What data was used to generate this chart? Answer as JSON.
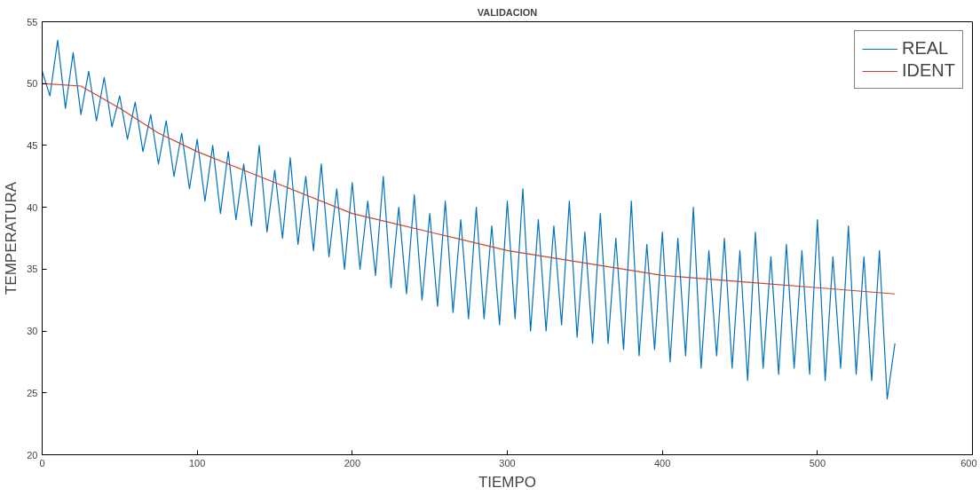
{
  "chart_data": {
    "type": "line",
    "title": "VALIDACION",
    "xlabel": "TIEMPO",
    "ylabel": "TEMPERATURA",
    "xlim": [
      0,
      600
    ],
    "ylim": [
      20,
      55
    ],
    "xticks": [
      0,
      100,
      200,
      300,
      400,
      500,
      600
    ],
    "yticks": [
      20,
      25,
      30,
      35,
      40,
      45,
      50,
      55
    ],
    "grid": false,
    "legend": "top right",
    "marker": "none",
    "line_style": "solid",
    "series": [
      {
        "name": "REAL",
        "color": "#0072bd",
        "x": [
          0,
          5,
          10,
          15,
          20,
          25,
          30,
          35,
          40,
          45,
          50,
          55,
          60,
          65,
          70,
          75,
          80,
          85,
          90,
          95,
          100,
          105,
          110,
          115,
          120,
          125,
          130,
          135,
          140,
          145,
          150,
          155,
          160,
          165,
          170,
          175,
          180,
          185,
          190,
          195,
          200,
          205,
          210,
          215,
          220,
          225,
          230,
          235,
          240,
          245,
          250,
          255,
          260,
          265,
          270,
          275,
          280,
          285,
          290,
          295,
          300,
          305,
          310,
          315,
          320,
          325,
          330,
          335,
          340,
          345,
          350,
          355,
          360,
          365,
          370,
          375,
          380,
          385,
          390,
          395,
          400,
          405,
          410,
          415,
          420,
          425,
          430,
          435,
          440,
          445,
          450,
          455,
          460,
          465,
          470,
          475,
          480,
          485,
          490,
          495,
          500,
          505,
          510,
          515,
          520,
          525,
          530,
          535,
          540,
          545,
          550
        ],
        "values": [
          51,
          49,
          53.5,
          48,
          52.5,
          47.5,
          51,
          47,
          50.5,
          46.5,
          49,
          45.5,
          48.5,
          44.5,
          47.5,
          43.5,
          47,
          42.5,
          46,
          41.5,
          45.5,
          40.5,
          45,
          39.5,
          44.5,
          39,
          43.5,
          38.5,
          45,
          38,
          43,
          37.5,
          44,
          37,
          42.5,
          36.5,
          43.5,
          36,
          41.5,
          35,
          42,
          35,
          40.5,
          34.5,
          42.5,
          33.5,
          40,
          33,
          41,
          32.5,
          39.5,
          32,
          40.5,
          31.5,
          39,
          31,
          40,
          31,
          38.5,
          30.5,
          40.5,
          31,
          41.5,
          30,
          39,
          30,
          38.5,
          30.5,
          40.5,
          29.5,
          38,
          29,
          39.5,
          29,
          37.5,
          28.5,
          40.5,
          28,
          37,
          28.5,
          38,
          27.5,
          37.5,
          28,
          40,
          27,
          36.5,
          28,
          37.5,
          27,
          36.5,
          26,
          38,
          27,
          36,
          26.5,
          37,
          27,
          36.5,
          26.5,
          39,
          26,
          36,
          27,
          38.5,
          26.5,
          36,
          26,
          36.5,
          24.5,
          29
        ]
      },
      {
        "name": "IDENT",
        "color": "#c8452d",
        "x": [
          0,
          25,
          50,
          75,
          100,
          150,
          200,
          250,
          300,
          350,
          400,
          450,
          500,
          550
        ],
        "values": [
          50,
          49.8,
          48,
          46,
          44.5,
          42,
          39.5,
          38,
          36.5,
          35.5,
          34.5,
          34,
          33.5,
          33
        ]
      }
    ]
  }
}
